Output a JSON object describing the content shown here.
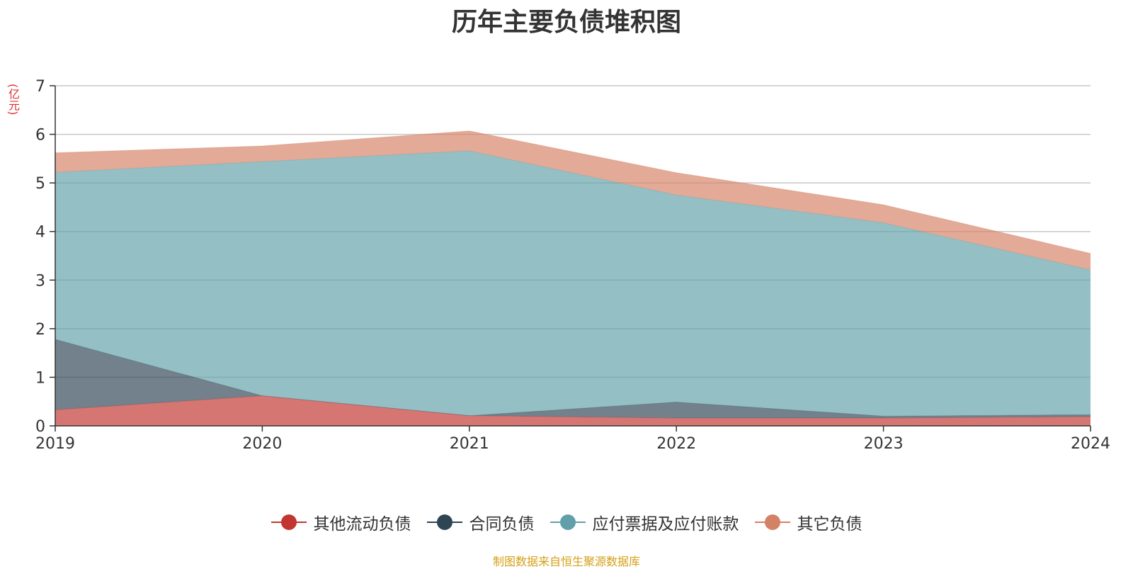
{
  "chart_data": {
    "type": "area",
    "stacked": true,
    "title": "历年主要负债堆积图",
    "unit_label": "(亿元)",
    "categories": [
      "2019",
      "2020",
      "2021",
      "2022",
      "2023",
      "2024"
    ],
    "ylim": [
      0,
      7
    ],
    "yticks": [
      "0",
      "1",
      "2",
      "3",
      "4",
      "5",
      "6",
      "7"
    ],
    "grid": true,
    "legend_position": "bottom",
    "series": [
      {
        "name": "其他流动负债",
        "color": "#c23531",
        "values": [
          0.33,
          0.62,
          0.21,
          0.16,
          0.16,
          0.19
        ]
      },
      {
        "name": "合同负债",
        "color": "#2f4554",
        "values": [
          1.45,
          0.0,
          0.0,
          0.33,
          0.04,
          0.04
        ]
      },
      {
        "name": "应付票据及应付账款",
        "color": "#61a0a8",
        "values": [
          3.44,
          4.82,
          5.45,
          4.26,
          3.98,
          2.98
        ]
      },
      {
        "name": "其它负债",
        "color": "#d48265",
        "values": [
          0.4,
          0.32,
          0.41,
          0.46,
          0.37,
          0.34
        ]
      }
    ],
    "source": "制图数据来自恒生聚源数据库"
  }
}
